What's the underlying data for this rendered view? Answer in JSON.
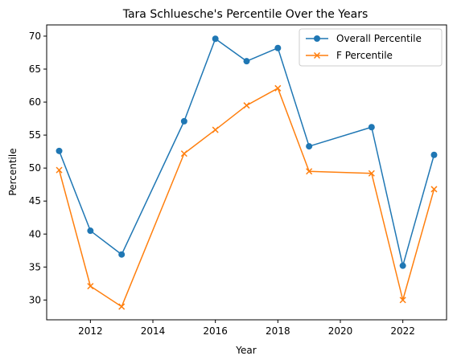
{
  "chart_data": {
    "type": "line",
    "title": "Tara Schluesche's Percentile Over the Years",
    "xlabel": "Year",
    "ylabel": "Percentile",
    "xlim": [
      2010.6,
      2023.4
    ],
    "ylim": [
      27.0,
      71.7
    ],
    "xticks": [
      2012,
      2014,
      2016,
      2018,
      2020,
      2022
    ],
    "yticks": [
      30,
      35,
      40,
      45,
      50,
      55,
      60,
      65,
      70
    ],
    "grid": false,
    "legend_position": "top-right",
    "x": [
      2011,
      2012,
      2013,
      2015,
      2016,
      2017,
      2018,
      2019,
      2021,
      2022,
      2023
    ],
    "series": [
      {
        "name": "Overall Percentile",
        "color": "#1f77b4",
        "marker": "circle",
        "values": [
          52.6,
          40.5,
          36.9,
          57.1,
          69.6,
          66.2,
          68.2,
          53.3,
          56.2,
          35.2,
          52.0
        ]
      },
      {
        "name": "F Percentile",
        "color": "#ff7f0e",
        "marker": "x",
        "values": [
          49.7,
          32.1,
          29.0,
          52.2,
          55.8,
          59.5,
          62.1,
          49.5,
          49.2,
          30.0,
          46.8
        ]
      }
    ]
  }
}
